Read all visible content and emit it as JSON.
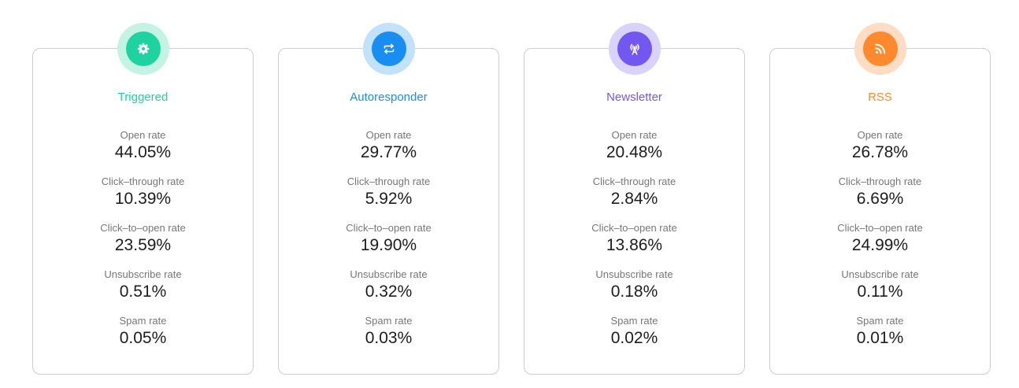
{
  "cards": [
    {
      "title": "Triggered",
      "icon": "gear-icon",
      "accent": "#1ed3a0",
      "accent_light": "#c4f3e4",
      "metrics": [
        {
          "label": "Open rate",
          "value": "44.05%"
        },
        {
          "label": "Click–through rate",
          "value": "10.39%"
        },
        {
          "label": "Click–to–open rate",
          "value": "23.59%"
        },
        {
          "label": "Unsubscribe rate",
          "value": "0.51%"
        },
        {
          "label": "Spam rate",
          "value": "0.05%"
        }
      ]
    },
    {
      "title": "Autoresponder",
      "icon": "repeat-icon",
      "accent": "#1a8df0",
      "accent_light": "#c2e2fb",
      "metrics": [
        {
          "label": "Open rate",
          "value": "29.77%"
        },
        {
          "label": "Click–through rate",
          "value": "5.92%"
        },
        {
          "label": "Click–to–open rate",
          "value": "19.90%"
        },
        {
          "label": "Unsubscribe rate",
          "value": "0.32%"
        },
        {
          "label": "Spam rate",
          "value": "0.03%"
        }
      ]
    },
    {
      "title": "Newsletter",
      "icon": "broadcast-antenna-icon",
      "accent": "#7257f0",
      "accent_light": "#d9d2fa",
      "metrics": [
        {
          "label": "Open rate",
          "value": "20.48%"
        },
        {
          "label": "Click–through rate",
          "value": "2.84%"
        },
        {
          "label": "Click–to–open rate",
          "value": "13.86%"
        },
        {
          "label": "Unsubscribe rate",
          "value": "0.18%"
        },
        {
          "label": "Spam rate",
          "value": "0.02%"
        }
      ]
    },
    {
      "title": "RSS",
      "icon": "rss-icon",
      "accent": "#ff8a2d",
      "accent_light": "#ffdcc3",
      "metrics": [
        {
          "label": "Open rate",
          "value": "26.78%"
        },
        {
          "label": "Click–through rate",
          "value": "6.69%"
        },
        {
          "label": "Click–to–open rate",
          "value": "24.99%"
        },
        {
          "label": "Unsubscribe rate",
          "value": "0.11%"
        },
        {
          "label": "Spam rate",
          "value": "0.01%"
        }
      ]
    }
  ]
}
